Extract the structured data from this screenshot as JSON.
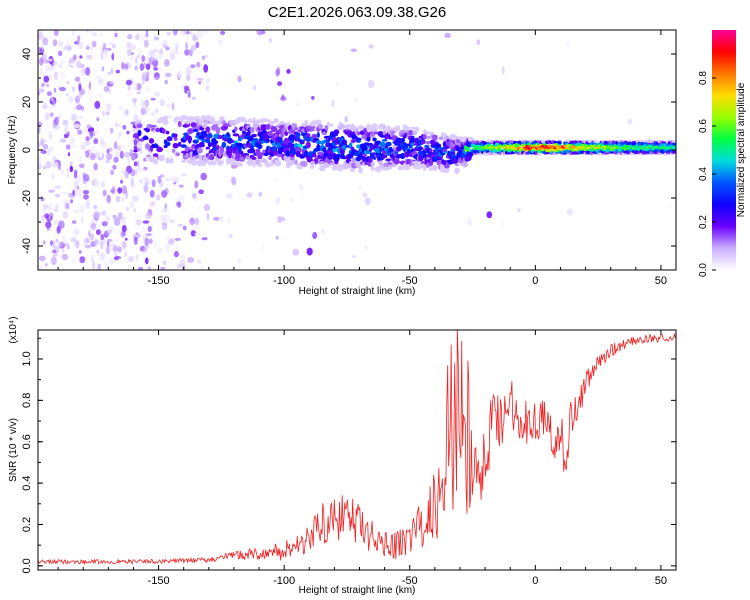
{
  "title": "C2E1.2026.063.09.38.G26",
  "chart_data": [
    {
      "type": "heatmap",
      "name": "spectrogram",
      "xlabel": "Height of straight line (km)",
      "ylabel": "Frequency (Hz)",
      "xlim": [
        -198,
        56
      ],
      "ylim": [
        -50,
        50
      ],
      "xticks": [
        -150,
        -100,
        -50,
        0,
        50
      ],
      "xtick_labels": [
        "-150",
        "-100",
        "-50",
        "0",
        "50"
      ],
      "yticks": [
        -40,
        -20,
        0,
        20,
        40
      ],
      "ytick_labels": [
        "-40",
        "-20",
        "0",
        "20",
        "40"
      ],
      "signal_band": {
        "x": [
          -150,
          -130,
          -110,
          -90,
          -70,
          -50,
          -30,
          -25,
          -10,
          0,
          20,
          40,
          56
        ],
        "center_hz": [
          4,
          4,
          3,
          2,
          1,
          1,
          -2,
          1,
          1,
          1,
          1,
          1,
          1
        ],
        "halfwidth_hz": [
          8,
          8,
          8,
          8,
          8,
          7,
          6,
          3,
          3,
          3,
          3,
          3,
          3
        ],
        "peak_amplitude": [
          0.25,
          0.32,
          0.3,
          0.34,
          0.33,
          0.32,
          0.32,
          0.58,
          0.78,
          0.97,
          0.75,
          0.58,
          0.55
        ]
      },
      "colorbar": {
        "label": "Normalized spectral amplitude",
        "range": [
          0,
          1
        ],
        "ticks": [
          0.0,
          0.2,
          0.4,
          0.6,
          0.8
        ],
        "tick_labels": [
          "0.0",
          "0.2",
          "0.4",
          "0.6",
          "0.8"
        ],
        "colors": [
          "#ffffff",
          "#c9b0ff",
          "#6a00ff",
          "#1000ff",
          "#0055ff",
          "#00dddd",
          "#00ff44",
          "#99ff00",
          "#ffdd00",
          "#ff7700",
          "#ff0000",
          "#ff0099"
        ]
      }
    },
    {
      "type": "line",
      "name": "snr",
      "xlabel": "Height of straight line (km)",
      "ylabel": "SNR (10 * v/v)",
      "yscale_label": "(x10⁴)",
      "xlim": [
        -198,
        56
      ],
      "ylim": [
        -0.02,
        1.14
      ],
      "xticks": [
        -150,
        -100,
        -50,
        0,
        50
      ],
      "xtick_labels": [
        "-150",
        "-100",
        "-50",
        "0",
        "50"
      ],
      "yticks": [
        0.0,
        0.2,
        0.4,
        0.6,
        0.8,
        1.0
      ],
      "ytick_labels": [
        "0.0",
        "0.2",
        "0.4",
        "0.6",
        "0.8",
        "1.0"
      ],
      "color": "#ee2222",
      "series": [
        {
          "name": "SNR",
          "x": [
            -198,
            -180,
            -160,
            -140,
            -130,
            -120,
            -110,
            -100,
            -95,
            -90,
            -85,
            -80,
            -75,
            -70,
            -65,
            -60,
            -55,
            -50,
            -45,
            -42,
            -38,
            -35,
            -32,
            -30,
            -28,
            -26,
            -24,
            -22,
            -20,
            -18,
            -16,
            -14,
            -12,
            -10,
            -8,
            -6,
            -4,
            -2,
            0,
            2,
            4,
            6,
            8,
            10,
            12,
            14,
            16,
            18,
            20,
            22,
            25,
            28,
            30,
            35,
            40,
            45,
            50,
            56
          ],
          "y": [
            0.02,
            0.02,
            0.02,
            0.025,
            0.03,
            0.05,
            0.06,
            0.07,
            0.1,
            0.15,
            0.2,
            0.22,
            0.24,
            0.2,
            0.14,
            0.11,
            0.1,
            0.14,
            0.2,
            0.26,
            0.33,
            0.42,
            0.52,
            0.55,
            0.5,
            0.45,
            0.42,
            0.45,
            0.5,
            0.65,
            0.78,
            0.7,
            0.72,
            0.8,
            0.75,
            0.73,
            0.7,
            0.68,
            0.72,
            0.7,
            0.7,
            0.65,
            0.6,
            0.62,
            0.55,
            0.7,
            0.75,
            0.82,
            0.88,
            0.93,
            0.98,
            1.01,
            1.04,
            1.07,
            1.09,
            1.1,
            1.1,
            1.11
          ],
          "noise": [
            0.01,
            0.01,
            0.01,
            0.01,
            0.012,
            0.02,
            0.03,
            0.05,
            0.07,
            0.09,
            0.1,
            0.11,
            0.11,
            0.1,
            0.08,
            0.07,
            0.07,
            0.09,
            0.12,
            0.15,
            0.2,
            0.25,
            0.28,
            0.28,
            0.25,
            0.22,
            0.2,
            0.18,
            0.18,
            0.16,
            0.15,
            0.13,
            0.13,
            0.12,
            0.12,
            0.12,
            0.11,
            0.11,
            0.11,
            0.11,
            0.11,
            0.12,
            0.13,
            0.13,
            0.15,
            0.12,
            0.1,
            0.08,
            0.06,
            0.05,
            0.04,
            0.03,
            0.03,
            0.025,
            0.02,
            0.02,
            0.02,
            0.02
          ]
        }
      ]
    }
  ]
}
